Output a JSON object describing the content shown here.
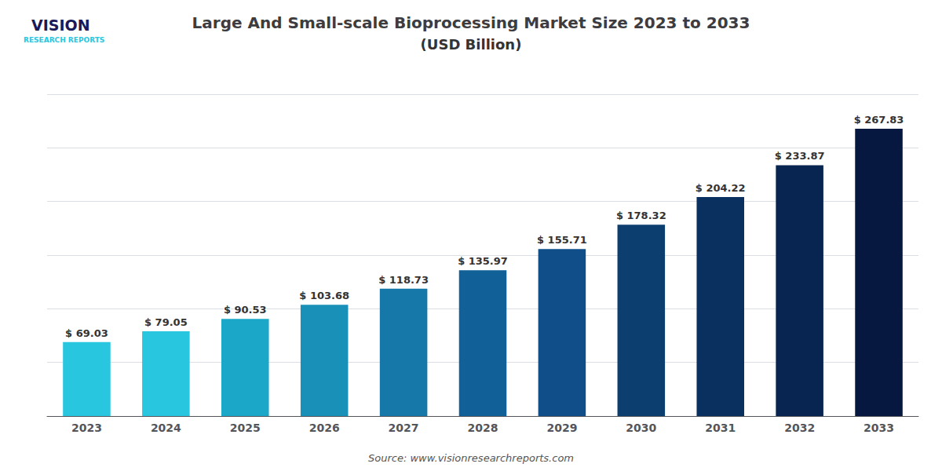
{
  "chart_data": {
    "type": "bar",
    "title": "Large And Small-scale Bioprocessing Market Size 2023 to 2033",
    "subtitle": "(USD Billion)",
    "source": "Source: www.visionresearchreports.com",
    "logo": [
      "VISION",
      "RESEARCH REPORTS"
    ],
    "categories": [
      "2023",
      "2024",
      "2025",
      "2026",
      "2027",
      "2028",
      "2029",
      "2030",
      "2031",
      "2032",
      "2033"
    ],
    "values": [
      69.03,
      79.05,
      90.53,
      103.68,
      118.73,
      135.97,
      155.71,
      178.32,
      204.22,
      233.87,
      267.83
    ],
    "value_labels": [
      "$ 69.03",
      "$ 79.05",
      "$ 90.53",
      "$ 103.68",
      "$ 118.73",
      "$ 135.97",
      "$ 155.71",
      "$ 178.32",
      "$ 204.22",
      "$ 233.87",
      "$ 267.83"
    ],
    "data_labels": true,
    "colors": [
      "#29C6E0",
      "#29C6E0",
      "#1BA8C8",
      "#1890B8",
      "#1578A8",
      "#126098",
      "#0F4E88",
      "#0C3E70",
      "#0A3060",
      "#082450",
      "#061840"
    ],
    "ylim": [
      0,
      300
    ],
    "yticks": [
      0,
      50,
      100,
      150,
      200,
      250,
      300
    ],
    "grid": true,
    "tick_labels": "x"
  }
}
